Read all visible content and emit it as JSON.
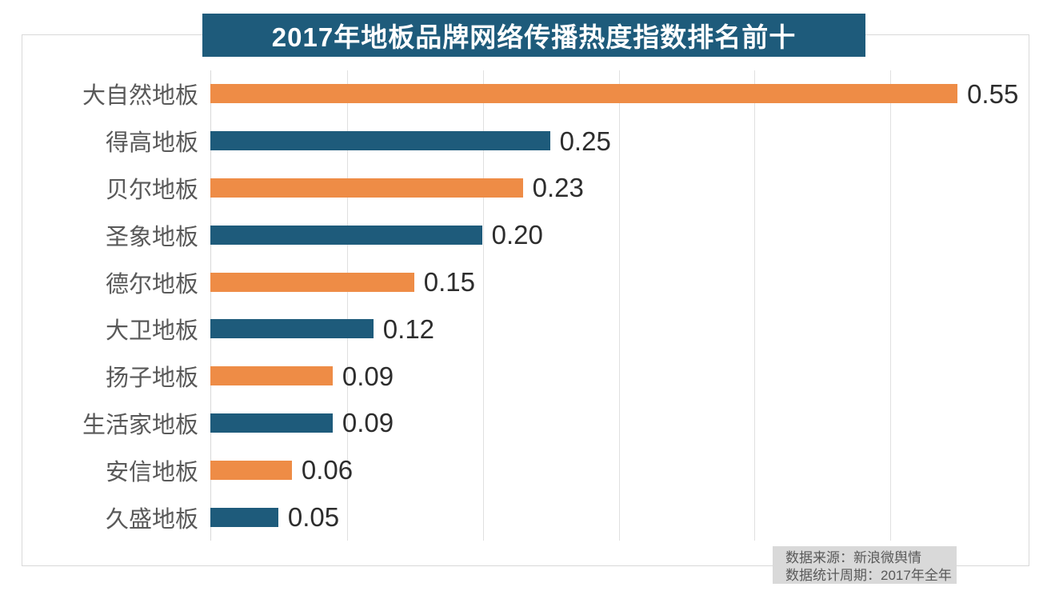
{
  "chart_data": {
    "type": "bar",
    "orientation": "horizontal",
    "title": "2017年地板品牌网络传播热度指数排名前十",
    "categories": [
      "大自然地板",
      "得高地板",
      "贝尔地板",
      "圣象地板",
      "德尔地板",
      "大卫地板",
      "扬子地板",
      "生活家地板",
      "安信地板",
      "久盛地板"
    ],
    "values": [
      0.55,
      0.25,
      0.23,
      0.2,
      0.15,
      0.12,
      0.09,
      0.09,
      0.06,
      0.05
    ],
    "value_labels": [
      "0.55",
      "0.25",
      "0.23",
      "0.20",
      "0.15",
      "0.12",
      "0.09",
      "0.09",
      "0.06",
      "0.05"
    ],
    "bar_colors": [
      "#EE8C46",
      "#1E5B7B",
      "#EE8C46",
      "#1E5B7B",
      "#EE8C46",
      "#1E5B7B",
      "#EE8C46",
      "#1E5B7B",
      "#EE8C46",
      "#1E5B7B"
    ],
    "xlim": [
      0,
      0.6
    ],
    "gridline_interval": 0.1,
    "grid": "vertical-only",
    "legend": "none",
    "value_label_position": "end-of-bar"
  },
  "colors": {
    "title_bg": "#1E5B7B",
    "title_text": "#FFFFFF",
    "orange_bar": "#EE8C46",
    "teal_bar": "#1E5B7B",
    "gridline": "#E0E0E0",
    "frame_border": "#D9D9D9",
    "category_text": "#595959",
    "value_text": "#2D2D2D",
    "source_bg": "#D9D9D9",
    "source_text": "#595959"
  },
  "source": {
    "line1": "数据来源：新浪微舆情",
    "line2": "数据统计周期：2017年全年"
  }
}
